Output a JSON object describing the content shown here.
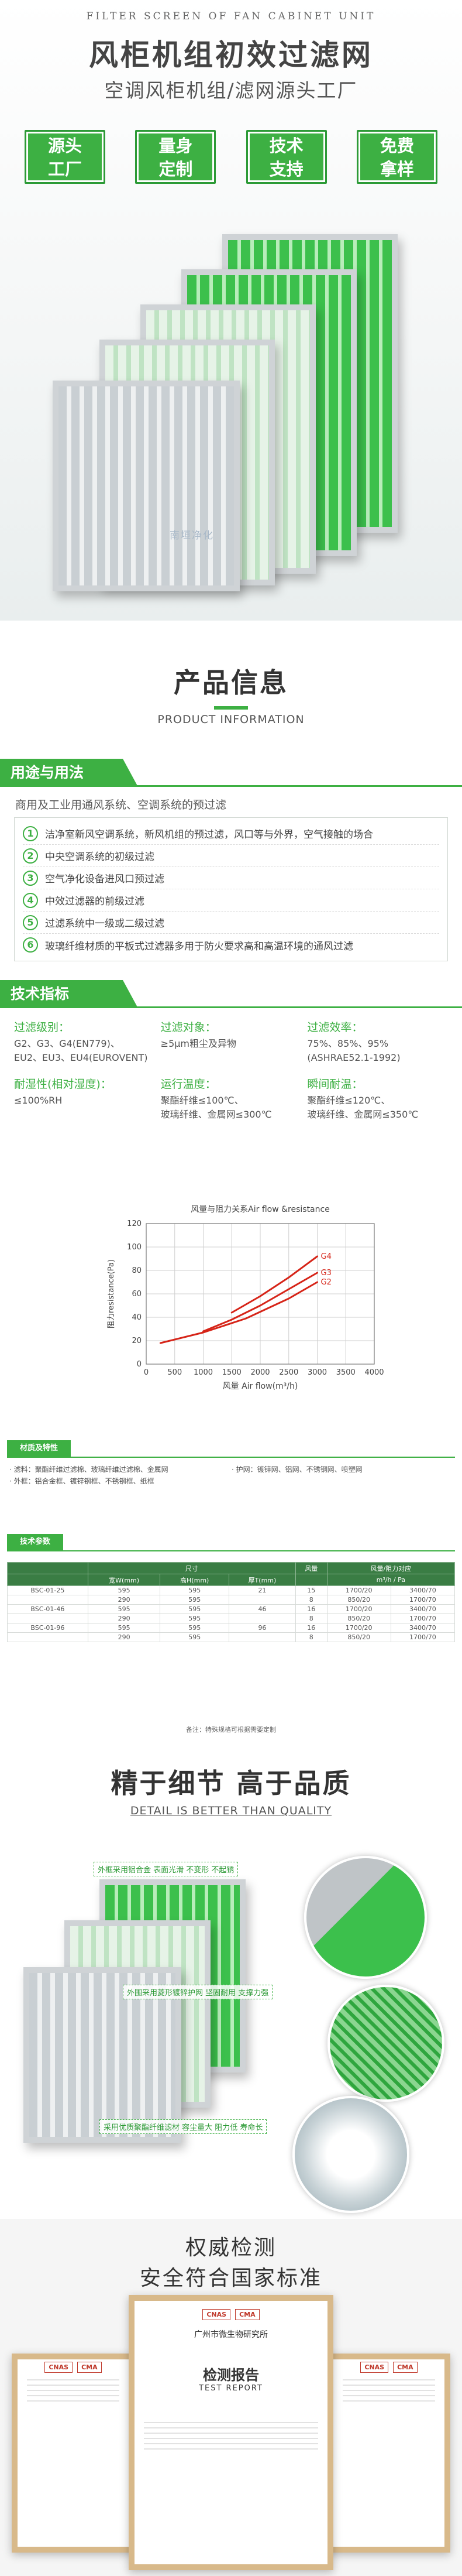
{
  "hero": {
    "subtitle_en": "FILTER SCREEN OF FAN CABINET UNIT",
    "title": "风柜机组初效过滤网",
    "subtitle": "空调风柜机组/滤网源头工厂",
    "badges": [
      {
        "line1": "源头",
        "line2": "工厂"
      },
      {
        "line1": "量身",
        "line2": "定制"
      },
      {
        "line1": "技术",
        "line2": "支持"
      },
      {
        "line1": "免费",
        "line2": "拿样"
      }
    ],
    "watermark": "南垣净化"
  },
  "product_info": {
    "title": "产品信息",
    "title_en": "PRODUCT INFORMATION"
  },
  "usage": {
    "tab": "用途与用法",
    "intro": "商用及工业用通风系统、空调系统的预过滤",
    "items": [
      {
        "num": "1",
        "text": "洁净室新风空调系统，新风机组的预过滤，风口等与外界，空气接触的场合"
      },
      {
        "num": "2",
        "text": "中央空调系统的初级过滤"
      },
      {
        "num": "3",
        "text": "空气净化设备进风口预过滤"
      },
      {
        "num": "4",
        "text": "中效过滤器的前级过滤"
      },
      {
        "num": "5",
        "text": "过滤系统中一级或二级过滤"
      },
      {
        "num": "6",
        "text": "玻璃纤维材质的平板式过滤器多用于防火要求高和高温环境的通风过滤"
      }
    ]
  },
  "specs": {
    "tab": "技术指标",
    "items": [
      {
        "label": "过滤级别：",
        "lines": [
          "G2、G3、G4(EN779)、",
          "EU2、EU3、EU4(EUROVENT)"
        ]
      },
      {
        "label": "过滤对象：",
        "lines": [
          "≥5μm粗尘及异物"
        ]
      },
      {
        "label": "过滤效率：",
        "lines": [
          "75%、85%、95%",
          "(ASHRAE52.1-1992)"
        ]
      },
      {
        "label": "耐湿性(相对湿度)：",
        "lines": [
          "≤100%RH"
        ]
      },
      {
        "label": "运行温度：",
        "lines": [
          "聚酯纤维≤100℃、",
          "玻璃纤维、金属网≤300℃"
        ]
      },
      {
        "label": "瞬间耐温：",
        "lines": [
          "聚酯纤维≤120℃、",
          "玻璃纤维、金属网≤350℃"
        ]
      }
    ]
  },
  "chart_data": {
    "type": "line",
    "title": "风量与阻力关系Air flow &resistance",
    "xlabel": "风量 Air flow(m³/h)",
    "ylabel": "阻力resistance(Pa)",
    "xlim": [
      0,
      4000
    ],
    "ylim": [
      0,
      120
    ],
    "xticks": [
      0,
      500,
      1000,
      1500,
      2000,
      2500,
      3000,
      3500,
      4000
    ],
    "yticks": [
      0,
      20,
      40,
      60,
      80,
      100,
      120
    ],
    "grid": true,
    "series": [
      {
        "name": "G4",
        "x": [
          1500,
          2000,
          2500,
          3000
        ],
        "y": [
          44,
          58,
          74,
          92
        ]
      },
      {
        "name": "G3",
        "x": [
          1000,
          1500,
          2000,
          2500,
          3000
        ],
        "y": [
          28,
          38,
          50,
          64,
          78
        ]
      },
      {
        "name": "G2",
        "x": [
          250,
          1000,
          1750,
          2500,
          3000
        ],
        "y": [
          18,
          27,
          39,
          56,
          70
        ]
      }
    ]
  },
  "materials": {
    "tab": "材质及特性",
    "rows": [
      [
        "· 滤料：聚酯纤维过滤棉、玻璃纤维过滤棉、金属网",
        "· 护网：镀锌网、铝网、不锈钢网、喷塑网"
      ],
      [
        "· 外框：铝合金框、镀锌钢框、不锈钢框、纸框",
        ""
      ]
    ]
  },
  "params": {
    "tab": "技术参数",
    "headers": [
      "",
      "尺寸",
      "",
      "",
      "风量",
      "风量/阻力对应",
      ""
    ],
    "subheaders": [
      "",
      "宽W(mm)",
      "高H(mm)",
      "厚T(mm)",
      "",
      "m³/h / Pa",
      ""
    ],
    "rows": [
      [
        "BSC-01-25",
        "595",
        "595",
        "21",
        "15",
        "1700/20",
        "3400/70"
      ],
      [
        "",
        "290",
        "595",
        "",
        "8",
        "850/20",
        "1700/70"
      ],
      [
        "BSC-01-46",
        "595",
        "595",
        "46",
        "16",
        "1700/20",
        "3400/70"
      ],
      [
        "",
        "290",
        "595",
        "",
        "8",
        "850/20",
        "1700/70"
      ],
      [
        "BSC-01-96",
        "595",
        "595",
        "96",
        "16",
        "1700/20",
        "3400/70"
      ],
      [
        "",
        "290",
        "595",
        "",
        "8",
        "850/20",
        "1700/70"
      ]
    ],
    "note": "备注：特殊规格可根据需要定制"
  },
  "detail": {
    "title": "精于细节 高于品质",
    "title_en": "DETAIL IS BETTER THAN QUALITY",
    "callouts": [
      "外框采用铝合金 表面光滑 不变形 不起锈",
      "外围采用菱形镀锌护网 坚固耐用 支撑力强",
      "采用优质聚酯纤维滤材 容尘量大 阻力低 寿命长"
    ]
  },
  "cert": {
    "title": "权威检测",
    "subtitle": "安全符合国家标准",
    "center_org": "广州市微生物研究所",
    "center_title": "检测报告",
    "center_title_en": "TEST REPORT",
    "logo1": "CMA",
    "logo2": "CNAS"
  }
}
